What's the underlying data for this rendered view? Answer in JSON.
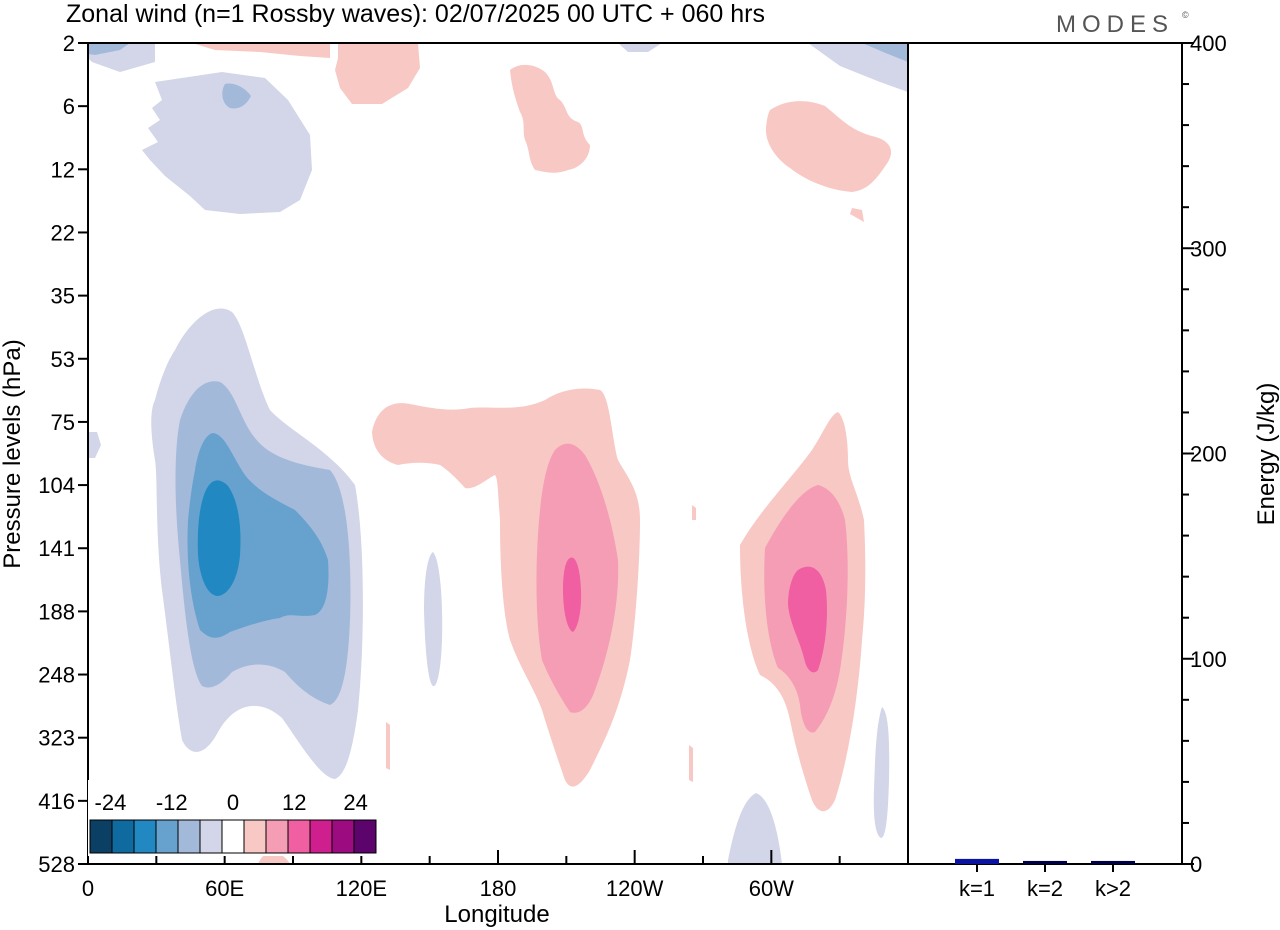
{
  "title": "Zonal wind (n=1 Rossby waves):  02/07/2025  00 UTC  + 060 hrs",
  "logo": "MODES",
  "logo_mark": "©",
  "chart_data": [
    {
      "type": "heatmap",
      "xlabel": "Longitude",
      "ylabel": "Pressure levels (hPa)",
      "x_ticks": [
        "0",
        "60E",
        "120E",
        "180",
        "120W",
        "60W"
      ],
      "x_tick_values": [
        0,
        60,
        120,
        180,
        240,
        300
      ],
      "xlim": [
        0,
        360
      ],
      "y_ticks": [
        "2",
        "6",
        "12",
        "22",
        "35",
        "53",
        "75",
        "104",
        "141",
        "188",
        "248",
        "323",
        "416",
        "528"
      ],
      "colorbar": {
        "labels": [
          "-24",
          "-12",
          "0",
          "12",
          "24"
        ],
        "label_values": [
          -24,
          -12,
          0,
          12,
          24
        ],
        "levels": [
          -28,
          -24,
          -20,
          -16,
          -12,
          -8,
          -4,
          0,
          4,
          8,
          12,
          16,
          20,
          24,
          28
        ],
        "colors": [
          "#0b3f63",
          "#0f6aa0",
          "#2288c2",
          "#67a2ce",
          "#a3b9da",
          "#d3d5e8",
          "#ffffff",
          "#f8c8c4",
          "#f69db6",
          "#ef5fa2",
          "#cf1f8e",
          "#9c0c80",
          "#5c046b"
        ]
      },
      "features": [
        {
          "lon": 60,
          "level": "141",
          "min": -20
        },
        {
          "lon": 208,
          "level": "188",
          "min": 12
        },
        {
          "lon": 318,
          "level": "188",
          "min": 12
        },
        {
          "lon": 74,
          "level": "6",
          "min": -4
        },
        {
          "lon": 115,
          "level": "2",
          "min": 4
        }
      ]
    },
    {
      "type": "bar",
      "categories": [
        "k=1",
        "k=2",
        "k>2"
      ],
      "values": [
        2,
        1,
        1
      ],
      "ylabel": "Energy (J/kg)",
      "ylim": [
        0,
        400
      ],
      "y_ticks": [
        "0",
        "100",
        "200",
        "300",
        "400"
      ],
      "bar_color": "#0a14a0"
    }
  ]
}
